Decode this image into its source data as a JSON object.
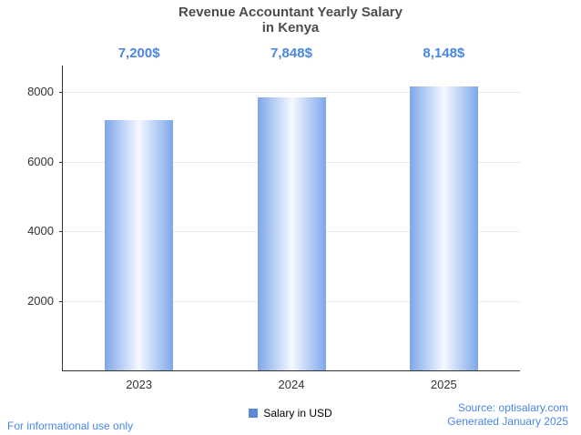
{
  "chart_data": {
    "type": "bar",
    "title": "Revenue Accountant Yearly Salary in Kenya",
    "title_lines": [
      "Revenue Accountant Yearly Salary",
      "in Kenya"
    ],
    "categories": [
      "2023",
      "2024",
      "2025"
    ],
    "values": [
      7200,
      7848,
      8148
    ],
    "value_labels": [
      "7,200$",
      "7,848$",
      "8,148$"
    ],
    "series_name": "Salary in USD",
    "xlabel": "",
    "ylabel": "",
    "yticks": [
      2000,
      4000,
      6000,
      8000
    ],
    "ylim": [
      0,
      8760
    ],
    "grid": true,
    "legend_position": "bottom"
  },
  "colors": {
    "bar_edge": "#7da7ea",
    "bar_inner": "#9fbef0",
    "bar_mid": "#f4f8ff",
    "value_label_blue": "#4a86e8",
    "legend_swatch": "#5b8ad6",
    "footer_blue": "#4a86e8",
    "title_gray": "#4d4d4d",
    "axis": "#333333",
    "grid": "#e9e9e9"
  },
  "footer": {
    "disclaimer": "For informational use only",
    "source": "Source: optisalary.com",
    "generated": "Generated January 2025"
  }
}
